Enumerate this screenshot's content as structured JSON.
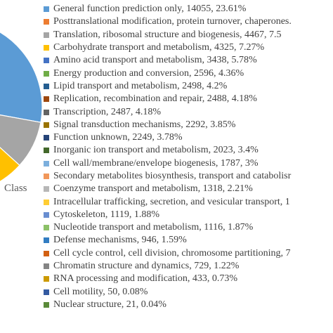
{
  "chart_data": {
    "type": "pie",
    "legend_position": "right",
    "class_label": "Class",
    "slices": [
      {
        "label": "General function prediction only",
        "value": 14055,
        "percent": "23.61%",
        "text": "General function prediction only, 14055, 23.61%",
        "color": "#5b9bd5"
      },
      {
        "label": "Posttranslational modification, protein turnover, chaperones",
        "value": null,
        "percent": "",
        "text": "Posttranslational modification, protein turnover, chaperones.",
        "color": "#ed7d31"
      },
      {
        "label": "Translation, ribosomal structure and biogenesis",
        "value": 4467,
        "percent": "7.5",
        "text": "Translation, ribosomal structure and biogenesis, 4467, 7.5",
        "color": "#a5a5a5"
      },
      {
        "label": "Carbohydrate transport and metabolism",
        "value": 4325,
        "percent": "7.27%",
        "text": "Carbohydrate transport and metabolism, 4325, 7.27%",
        "color": "#ffc000"
      },
      {
        "label": "Amino acid transport and metabolism",
        "value": 3438,
        "percent": "5.78%",
        "text": "Amino acid transport and metabolism, 3438, 5.78%",
        "color": "#4472c4"
      },
      {
        "label": "Energy production and conversion",
        "value": 2596,
        "percent": "4.36%",
        "text": "Energy production and conversion, 2596, 4.36%",
        "color": "#70ad47"
      },
      {
        "label": "Lipid transport and metabolism",
        "value": 2498,
        "percent": "4.2%",
        "text": "Lipid transport and metabolism, 2498, 4.2%",
        "color": "#255e91"
      },
      {
        "label": "Replication, recombination and repair",
        "value": 2488,
        "percent": "4.18%",
        "text": "Replication, recombination and repair, 2488, 4.18%",
        "color": "#9e480e"
      },
      {
        "label": "Transcription",
        "value": 2487,
        "percent": "4.18%",
        "text": "Transcription, 2487, 4.18%",
        "color": "#636363"
      },
      {
        "label": "Signal transduction mechanisms",
        "value": 2292,
        "percent": "3.85%",
        "text": "Signal transduction mechanisms, 2292, 3.85%",
        "color": "#997300"
      },
      {
        "label": "Function unknown",
        "value": 2249,
        "percent": "3.78%",
        "text": "Function unknown, 2249, 3.78%",
        "color": "#264478"
      },
      {
        "label": "Inorganic ion transport and metabolism",
        "value": 2023,
        "percent": "3.4%",
        "text": "Inorganic ion transport and metabolism, 2023, 3.4%",
        "color": "#43682b"
      },
      {
        "label": "Cell wall/membrane/envelope biogenesis",
        "value": 1787,
        "percent": "3%",
        "text": "Cell wall/membrane/envelope biogenesis, 1787, 3%",
        "color": "#7cafdd"
      },
      {
        "label": "Secondary metabolites biosynthesis, transport and catabolism",
        "value": null,
        "percent": "",
        "text": "Secondary metabolites biosynthesis, transport and catabolisr",
        "color": "#f1975a"
      },
      {
        "label": "Coenzyme transport and metabolism",
        "value": 1318,
        "percent": "2.21%",
        "text": "Coenzyme transport and metabolism, 1318, 2.21%",
        "color": "#b7b7b7"
      },
      {
        "label": "Intracellular trafficking, secretion, and vesicular transport",
        "value": null,
        "percent": "",
        "text": "Intracellular trafficking, secretion, and vesicular transport, 1",
        "color": "#ffcd33"
      },
      {
        "label": "Cytoskeleton",
        "value": 1119,
        "percent": "1.88%",
        "text": "Cytoskeleton, 1119, 1.88%",
        "color": "#698ed0"
      },
      {
        "label": "Nucleotide transport and metabolism",
        "value": 1116,
        "percent": "1.87%",
        "text": "Nucleotide transport and metabolism, 1116, 1.87%",
        "color": "#8cc168"
      },
      {
        "label": "Defense mechanisms",
        "value": 946,
        "percent": "1.59%",
        "text": "Defense mechanisms, 946, 1.59%",
        "color": "#327dc2"
      },
      {
        "label": "Cell cycle control, cell division, chromosome partitioning",
        "value": null,
        "percent": "",
        "text": "Cell cycle control, cell division, chromosome partitioning, 7",
        "color": "#d26012"
      },
      {
        "label": "Chromatin structure and dynamics",
        "value": 729,
        "percent": "1.22%",
        "text": "Chromatin structure and dynamics, 729, 1.22%",
        "color": "#848484"
      },
      {
        "label": "RNA processing and modification",
        "value": 433,
        "percent": "0.73%",
        "text": "RNA processing and modification, 433, 0.73%",
        "color": "#cc9a00"
      },
      {
        "label": "Cell motility",
        "value": 50,
        "percent": "0.08%",
        "text": "Cell motility, 50, 0.08%",
        "color": "#335aa1"
      },
      {
        "label": "Nuclear structure",
        "value": 21,
        "percent": "0.04%",
        "text": "Nuclear structure, 21, 0.04%",
        "color": "#5a8a39"
      }
    ]
  }
}
